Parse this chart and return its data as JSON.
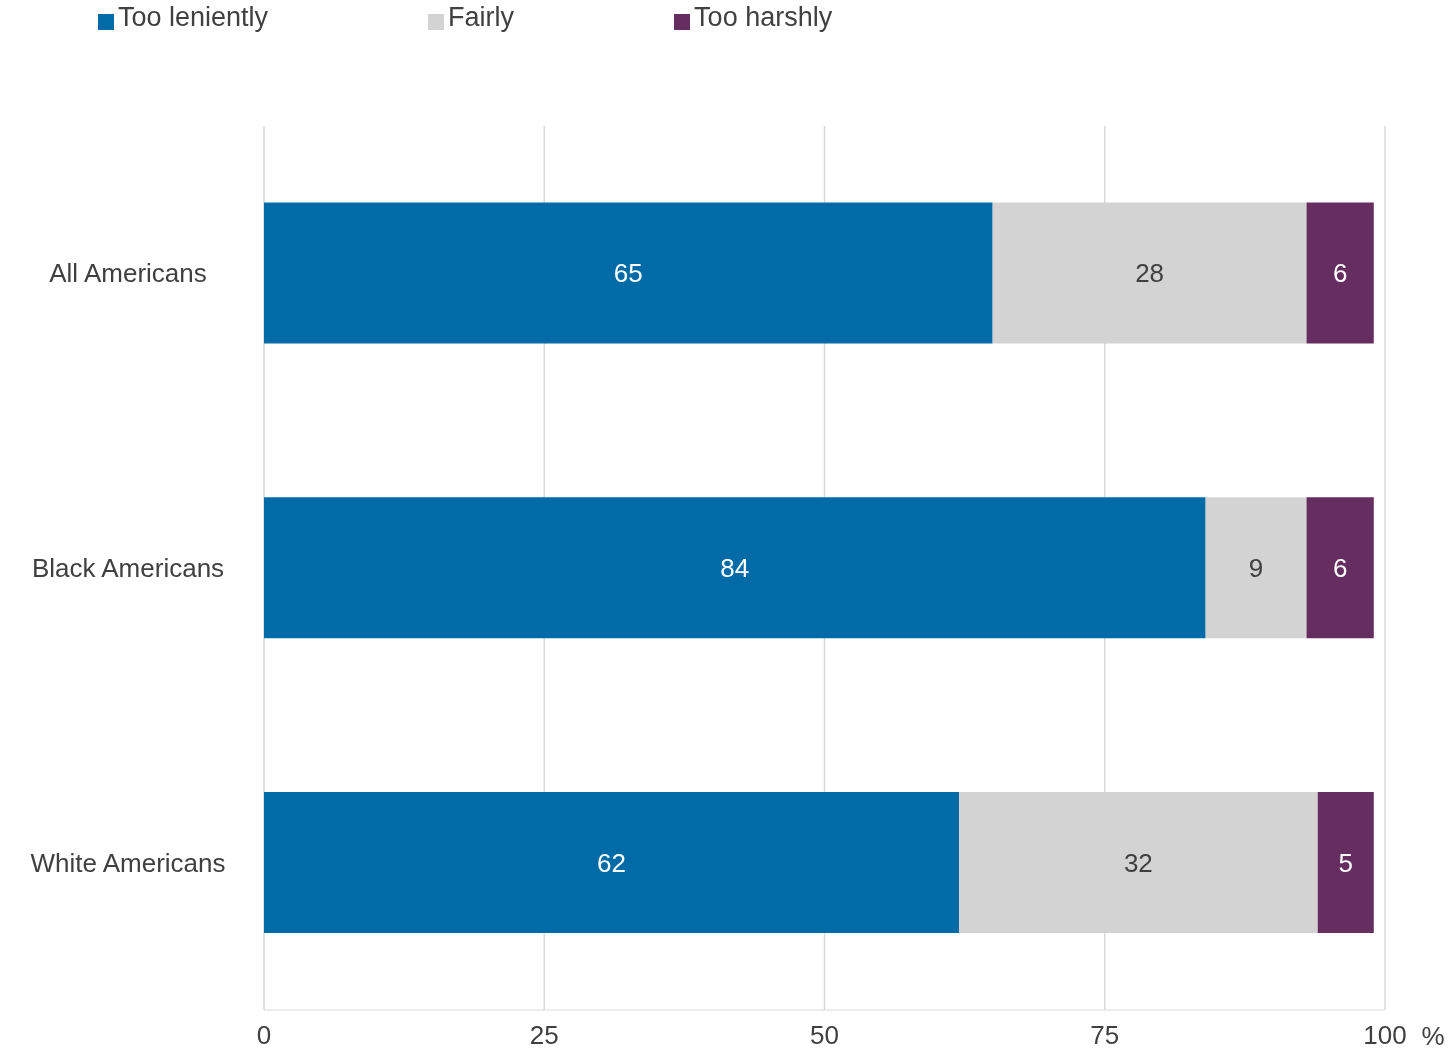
{
  "chart_data": {
    "type": "bar",
    "orientation": "horizontal",
    "stacked": true,
    "categories": [
      "All Americans",
      "Black Americans",
      "White Americans"
    ],
    "series": [
      {
        "name": "Too leniently",
        "color": "#006ba6",
        "values": [
          65,
          84,
          62
        ]
      },
      {
        "name": "Fairly",
        "color": "#d3d3d3",
        "values": [
          28,
          9,
          32
        ]
      },
      {
        "name": "Too harshly",
        "color": "#662e60",
        "values": [
          6,
          6,
          5
        ]
      }
    ],
    "xlim": [
      0,
      100
    ],
    "xticks": [
      0,
      25,
      50,
      75,
      100
    ],
    "xlabel": "%",
    "grid": "x",
    "legend": "top left",
    "data_labels": true
  }
}
